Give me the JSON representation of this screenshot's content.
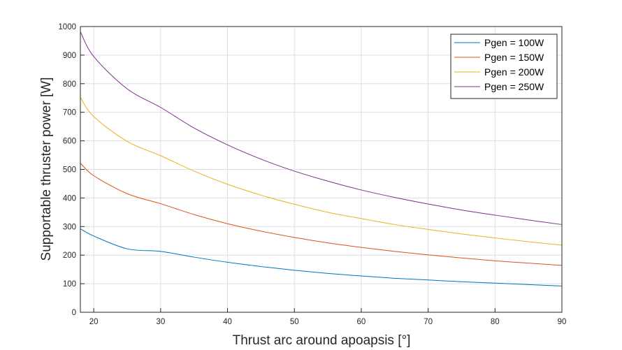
{
  "chart_data": {
    "type": "line",
    "title": "",
    "xlabel": "Thrust arc around apoapsis [°]",
    "ylabel": "Supportable thruster power [W]",
    "xlim": [
      18,
      90
    ],
    "ylim": [
      0,
      1000
    ],
    "xticks": [
      20,
      30,
      40,
      50,
      60,
      70,
      80,
      90
    ],
    "yticks": [
      0,
      100,
      200,
      300,
      400,
      500,
      600,
      700,
      800,
      900,
      1000
    ],
    "grid": true,
    "legend_position": "top-right",
    "x": [
      18,
      20,
      25,
      30,
      35,
      40,
      45,
      50,
      55,
      60,
      65,
      70,
      75,
      80,
      85,
      90
    ],
    "series": [
      {
        "name": "Pgen = 100W",
        "color": "#0072BD",
        "values": [
          292,
          267,
          222,
          213,
          193,
          175,
          160,
          147,
          136,
          127,
          119,
          113,
          107,
          102,
          97,
          92
        ]
      },
      {
        "name": "Pgen = 150W",
        "color": "#D95319",
        "values": [
          522,
          478,
          415,
          380,
          342,
          310,
          284,
          262,
          243,
          227,
          213,
          201,
          190,
          180,
          172,
          164
        ]
      },
      {
        "name": "Pgen = 200W",
        "color": "#EDB120",
        "values": [
          752,
          685,
          598,
          548,
          494,
          448,
          410,
          378,
          350,
          328,
          307,
          290,
          274,
          260,
          247,
          235
        ]
      },
      {
        "name": "Pgen = 250W",
        "color": "#7E2F8E",
        "values": [
          982,
          895,
          782,
          717,
          645,
          586,
          536,
          494,
          459,
          428,
          402,
          379,
          358,
          340,
          323,
          307
        ]
      }
    ]
  }
}
